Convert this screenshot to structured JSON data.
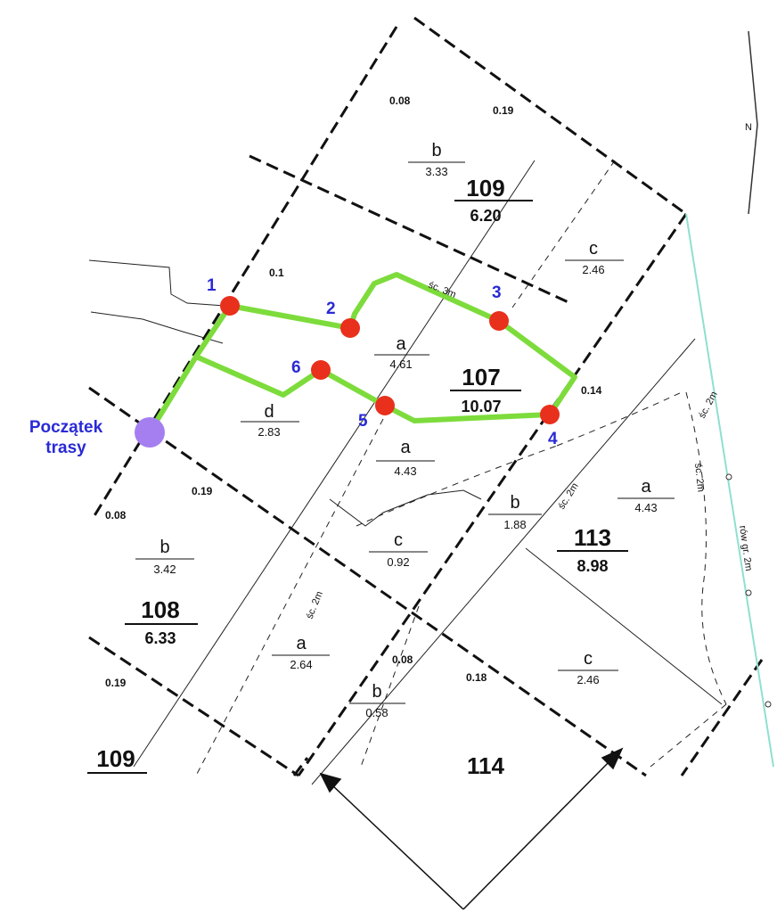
{
  "colors": {
    "route": "#7ddc3c",
    "waypoint": "#e8301c",
    "start": "#a57ff0",
    "blue_label": "#2a2ad6",
    "boundary": "#111111",
    "water_line": "#8fe0d0"
  },
  "start_label": {
    "line1": "Początek",
    "line2": "trasy"
  },
  "waypoints": [
    "1",
    "2",
    "3",
    "4",
    "5",
    "6"
  ],
  "parcels": [
    {
      "id": "p109-top",
      "number": "109",
      "area": "6.20"
    },
    {
      "id": "p107",
      "number": "107",
      "area": "10.07"
    },
    {
      "id": "p108",
      "number": "108",
      "area": "6.33"
    },
    {
      "id": "p113",
      "number": "113",
      "area": "8.98"
    },
    {
      "id": "p114",
      "number": "114"
    },
    {
      "id": "p109-bottom",
      "number": "109"
    }
  ],
  "subparcels": [
    {
      "id": "b-109",
      "letter": "b",
      "area": "3.33"
    },
    {
      "id": "c-109",
      "letter": "c",
      "area": "2.46"
    },
    {
      "id": "a-107",
      "letter": "a",
      "area": "4.61"
    },
    {
      "id": "d-107",
      "letter": "d",
      "area": "2.83"
    },
    {
      "id": "a-lower",
      "letter": "a",
      "area": "4.43"
    },
    {
      "id": "b-113",
      "letter": "b",
      "area": "1.88"
    },
    {
      "id": "a-113",
      "letter": "a",
      "area": "4.43"
    },
    {
      "id": "c-mid",
      "letter": "c",
      "area": "0.92"
    },
    {
      "id": "b-108",
      "letter": "b",
      "area": "3.42"
    },
    {
      "id": "a-108",
      "letter": "a",
      "area": "2.64"
    },
    {
      "id": "b-114",
      "letter": "b",
      "area": "0.58"
    },
    {
      "id": "c-114",
      "letter": "c",
      "area": "2.46"
    }
  ],
  "small_labels": [
    "0.08",
    "0.19",
    "0.1",
    "0.14",
    "0.19",
    "0.08",
    "0.19",
    "0.08",
    "0.18"
  ],
  "path_labels": {
    "sc1": "śc. 2m",
    "sc2": "śc. 2m",
    "sc3": "śc. 2m",
    "sc4": "śc. 2m",
    "sc5": "śc. 3m",
    "row": "rów gr. 2m"
  },
  "north_label": "N",
  "icons": {
    "north": "north-arrow-icon",
    "arrows": "pointer-arrow-icon"
  }
}
